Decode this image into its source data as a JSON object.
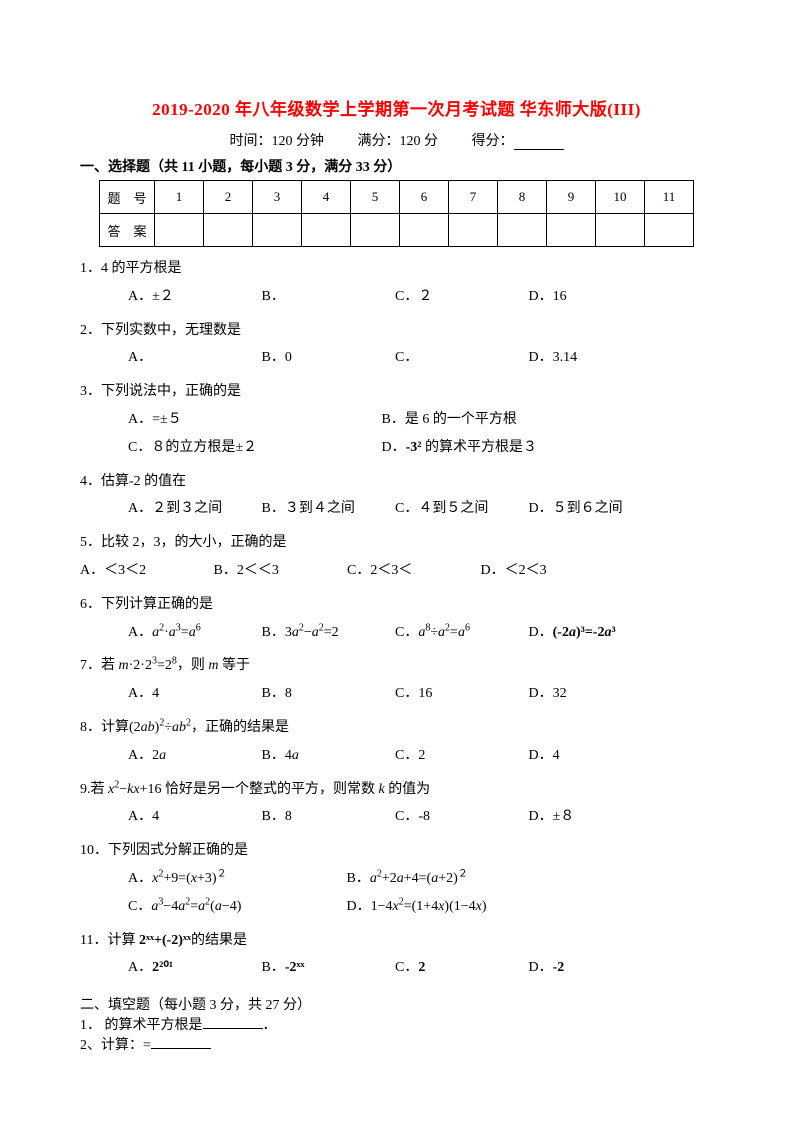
{
  "title": "2019-2020 年八年级数学上学期第一次月考试题 华东师大版(III)",
  "info": {
    "time": "时间：120 分钟",
    "full": "满分：120 分",
    "score_label": "得分："
  },
  "section1_head": "一、选择题（共 11 小题，每小题 3 分，满分 33 分）",
  "table": {
    "row1_label": "题　号",
    "row2_label": "答　案",
    "nums": [
      "1",
      "2",
      "3",
      "4",
      "5",
      "6",
      "7",
      "8",
      "9",
      "10",
      "11"
    ]
  },
  "q1": {
    "stem": "1．4 的平方根是",
    "A": "A．±２",
    "B": "B．",
    "C": "C．２",
    "D": "D．16"
  },
  "q2": {
    "stem": "2．下列实数中，无理数是",
    "A": "A．",
    "B": "B．0",
    "C": "C．",
    "D": "D．3.14"
  },
  "q3": {
    "stem": "3．下列说法中，正确的是",
    "A": "A．=±５",
    "B": "B．是 6 的一个平方根",
    "C": "C．８的立方根是±２",
    "D_pre": "D．",
    "D_bold": "-3²",
    "D_post": " 的算术平方根是３"
  },
  "q4": {
    "stem": "4．估算-2 的值在",
    "A": "A．２到３之间",
    "B": "B．３到４之间",
    "C": "C．４到５之间",
    "D": "D．５到６之间"
  },
  "q5": {
    "stem": "5．比较 2，3，的大小，正确的是",
    "A": "A．＜3＜2",
    "B": "B．2＜＜3",
    "C": "C．2＜3＜",
    "D": "D．＜2＜3"
  },
  "q6": {
    "stem": "6．下列计算正确的是"
  },
  "q7": {
    "A": "A．4",
    "B": "B．8",
    "C": "C．16",
    "D": "D．32"
  },
  "q8": {
    "A": "A．2a",
    "B": "B．4a",
    "C": "C．2",
    "D": "D．4"
  },
  "q9": {
    "A": "A．4",
    "B": "B．8",
    "C": "C．-8",
    "D": "D．±８"
  },
  "q10": {
    "stem": "10．下列因式分解正确的是"
  },
  "q11": {
    "pre": "11．计算 ",
    "expr": "2ˣˣ+(-2)ˣˣ",
    "post": "的结果是",
    "A": "A．",
    "Aexpr": "2²⁰¹",
    "B": "B．",
    "Bexpr": "-2ˣˣ",
    "C": "C．",
    "Cexpr": "2",
    "D": "D．",
    "Dexpr": "-2"
  },
  "section2_head": "二、填空题（每小题 3 分，共 27 分）",
  "f1": "1． 的算术平方根是",
  "f1_post": "．",
  "f2": "2、计算：="
}
